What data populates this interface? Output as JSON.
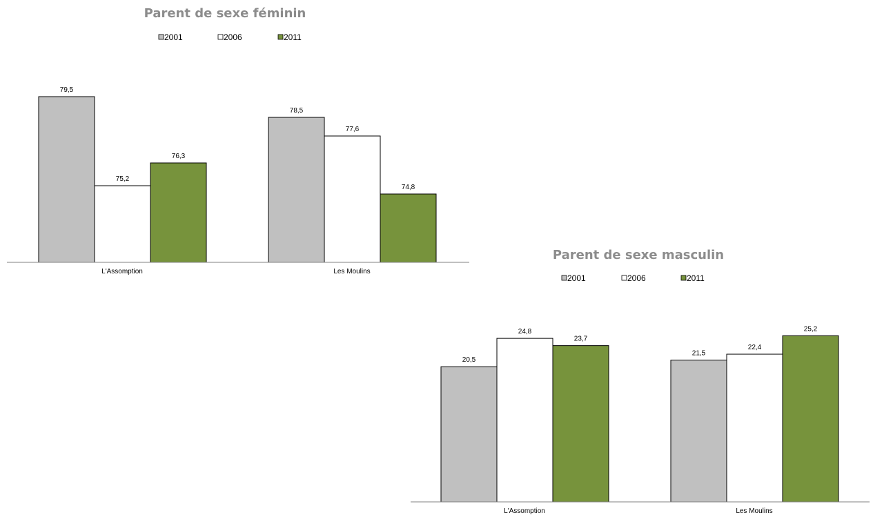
{
  "charts": [
    {
      "type": "bar",
      "title": "Parent de sexe féminin",
      "categories": [
        "L'Assomption",
        "Les Moulins"
      ],
      "series": [
        {
          "name": "2001",
          "values": [
            79.5,
            78.5
          ],
          "color": "#c0c0c0"
        },
        {
          "name": "2006",
          "values": [
            75.2,
            77.6
          ],
          "color": "#ffffff"
        },
        {
          "name": "2011",
          "values": [
            76.3,
            74.8
          ],
          "color": "#77933c"
        }
      ],
      "value_labels": [
        [
          "79,5",
          "78,5"
        ],
        [
          "75,2",
          "77,6"
        ],
        [
          "76,3",
          "74,8"
        ]
      ],
      "ylim": [
        71.5,
        80.5
      ],
      "legend": "top"
    },
    {
      "type": "bar",
      "title": "Parent de sexe masculin",
      "categories": [
        "L'Assomption",
        "Les Moulins"
      ],
      "series": [
        {
          "name": "2001",
          "values": [
            20.5,
            21.5
          ],
          "color": "#c0c0c0"
        },
        {
          "name": "2006",
          "values": [
            24.8,
            22.4
          ],
          "color": "#ffffff"
        },
        {
          "name": "2011",
          "values": [
            23.7,
            25.2
          ],
          "color": "#77933c"
        }
      ],
      "value_labels": [
        [
          "20,5",
          "21,5"
        ],
        [
          "24,8",
          "22,4"
        ],
        [
          "23,7",
          "25,2"
        ]
      ],
      "ylim": [
        0,
        29
      ],
      "legend": "top"
    }
  ],
  "chart_data": [
    {
      "type": "bar",
      "title": "Parent de sexe féminin",
      "categories": [
        "L'Assomption",
        "Les Moulins"
      ],
      "series": [
        {
          "name": "2001",
          "values": [
            79.5,
            78.5
          ]
        },
        {
          "name": "2006",
          "values": [
            75.2,
            77.6
          ]
        },
        {
          "name": "2011",
          "values": [
            76.3,
            74.8
          ]
        }
      ],
      "xlabel": "",
      "ylabel": "",
      "ylim": [
        71.5,
        80.5
      ],
      "grid": false,
      "legend": "top"
    },
    {
      "type": "bar",
      "title": "Parent de sexe masculin",
      "categories": [
        "L'Assomption",
        "Les Moulins"
      ],
      "series": [
        {
          "name": "2001",
          "values": [
            20.5,
            21.5
          ]
        },
        {
          "name": "2006",
          "values": [
            24.8,
            22.4
          ]
        },
        {
          "name": "2011",
          "values": [
            23.7,
            25.2
          ]
        }
      ],
      "xlabel": "",
      "ylabel": "",
      "ylim": [
        0,
        29
      ],
      "grid": false,
      "legend": "top"
    }
  ]
}
